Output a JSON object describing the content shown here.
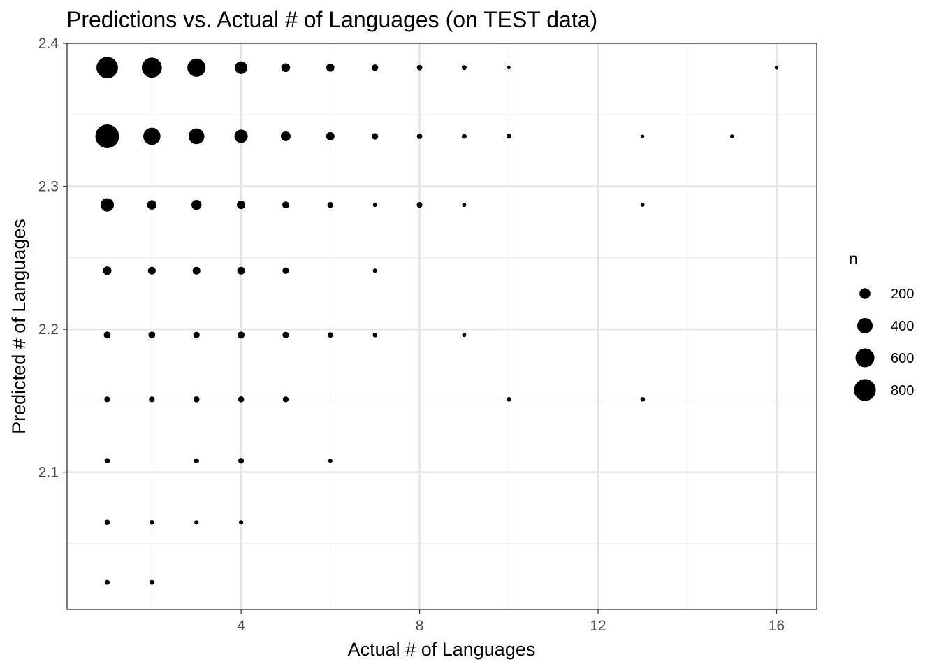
{
  "chart_data": {
    "type": "scatter",
    "title": "Predictions vs. Actual # of Languages (on TEST data)",
    "xlabel": "Actual # of Languages",
    "ylabel": "Predicted # of Languages",
    "xlim": [
      0.1,
      16.9
    ],
    "ylim": [
      2.004,
      2.4
    ],
    "x_ticks": [
      4,
      8,
      12,
      16
    ],
    "x_tick_labels": [
      "4",
      "8",
      "12",
      "16"
    ],
    "y_ticks": [
      2.1,
      2.2,
      2.3,
      2.4
    ],
    "y_tick_labels": [
      "2.1",
      "2.2",
      "2.3",
      "2.4"
    ],
    "x_minor": [
      2,
      6,
      10,
      14
    ],
    "y_minor": [
      2.05,
      2.15,
      2.25,
      2.35
    ],
    "grid": true,
    "theme": "bw",
    "point_color": "#000000",
    "size_variable": "n",
    "legend": {
      "title": "n",
      "position": "right",
      "entries": [
        {
          "label": "200",
          "value": 200
        },
        {
          "label": "400",
          "value": 400
        },
        {
          "label": "600",
          "value": 600
        },
        {
          "label": "800",
          "value": 800
        }
      ]
    },
    "points": [
      {
        "x": 1,
        "y": 2.383,
        "n": 780
      },
      {
        "x": 2,
        "y": 2.383,
        "n": 680
      },
      {
        "x": 3,
        "y": 2.383,
        "n": 560
      },
      {
        "x": 4,
        "y": 2.383,
        "n": 270
      },
      {
        "x": 5,
        "y": 2.383,
        "n": 130
      },
      {
        "x": 6,
        "y": 2.383,
        "n": 110
      },
      {
        "x": 7,
        "y": 2.383,
        "n": 70
      },
      {
        "x": 8,
        "y": 2.383,
        "n": 50
      },
      {
        "x": 9,
        "y": 2.383,
        "n": 40
      },
      {
        "x": 10,
        "y": 2.383,
        "n": 20
      },
      {
        "x": 16,
        "y": 2.383,
        "n": 25
      },
      {
        "x": 1,
        "y": 2.335,
        "n": 950
      },
      {
        "x": 2,
        "y": 2.335,
        "n": 500
      },
      {
        "x": 3,
        "y": 2.335,
        "n": 420
      },
      {
        "x": 4,
        "y": 2.335,
        "n": 300
      },
      {
        "x": 5,
        "y": 2.335,
        "n": 160
      },
      {
        "x": 6,
        "y": 2.335,
        "n": 120
      },
      {
        "x": 7,
        "y": 2.335,
        "n": 70
      },
      {
        "x": 8,
        "y": 2.335,
        "n": 50
      },
      {
        "x": 9,
        "y": 2.335,
        "n": 40
      },
      {
        "x": 10,
        "y": 2.335,
        "n": 40
      },
      {
        "x": 13,
        "y": 2.335,
        "n": 20
      },
      {
        "x": 15,
        "y": 2.335,
        "n": 25
      },
      {
        "x": 1,
        "y": 2.287,
        "n": 300
      },
      {
        "x": 2,
        "y": 2.287,
        "n": 150
      },
      {
        "x": 3,
        "y": 2.287,
        "n": 170
      },
      {
        "x": 4,
        "y": 2.287,
        "n": 120
      },
      {
        "x": 5,
        "y": 2.287,
        "n": 80
      },
      {
        "x": 6,
        "y": 2.287,
        "n": 60
      },
      {
        "x": 7,
        "y": 2.287,
        "n": 30
      },
      {
        "x": 8,
        "y": 2.287,
        "n": 55
      },
      {
        "x": 9,
        "y": 2.287,
        "n": 30
      },
      {
        "x": 13,
        "y": 2.287,
        "n": 25
      },
      {
        "x": 1,
        "y": 2.241,
        "n": 120
      },
      {
        "x": 2,
        "y": 2.241,
        "n": 100
      },
      {
        "x": 3,
        "y": 2.241,
        "n": 100
      },
      {
        "x": 4,
        "y": 2.241,
        "n": 100
      },
      {
        "x": 5,
        "y": 2.241,
        "n": 70
      },
      {
        "x": 7,
        "y": 2.241,
        "n": 30
      },
      {
        "x": 1,
        "y": 2.196,
        "n": 80
      },
      {
        "x": 2,
        "y": 2.196,
        "n": 80
      },
      {
        "x": 3,
        "y": 2.196,
        "n": 70
      },
      {
        "x": 4,
        "y": 2.196,
        "n": 80
      },
      {
        "x": 5,
        "y": 2.196,
        "n": 70
      },
      {
        "x": 6,
        "y": 2.196,
        "n": 50
      },
      {
        "x": 7,
        "y": 2.196,
        "n": 35
      },
      {
        "x": 9,
        "y": 2.196,
        "n": 30
      },
      {
        "x": 1,
        "y": 2.151,
        "n": 55
      },
      {
        "x": 2,
        "y": 2.151,
        "n": 55
      },
      {
        "x": 3,
        "y": 2.151,
        "n": 60
      },
      {
        "x": 4,
        "y": 2.151,
        "n": 60
      },
      {
        "x": 5,
        "y": 2.151,
        "n": 55
      },
      {
        "x": 10,
        "y": 2.151,
        "n": 35
      },
      {
        "x": 13,
        "y": 2.151,
        "n": 35
      },
      {
        "x": 1,
        "y": 2.108,
        "n": 50
      },
      {
        "x": 3,
        "y": 2.108,
        "n": 45
      },
      {
        "x": 4,
        "y": 2.108,
        "n": 55
      },
      {
        "x": 6,
        "y": 2.108,
        "n": 30
      },
      {
        "x": 1,
        "y": 2.065,
        "n": 45
      },
      {
        "x": 2,
        "y": 2.065,
        "n": 35
      },
      {
        "x": 3,
        "y": 2.065,
        "n": 30
      },
      {
        "x": 4,
        "y": 2.065,
        "n": 30
      },
      {
        "x": 1,
        "y": 2.023,
        "n": 40
      },
      {
        "x": 2,
        "y": 2.023,
        "n": 40
      }
    ]
  }
}
